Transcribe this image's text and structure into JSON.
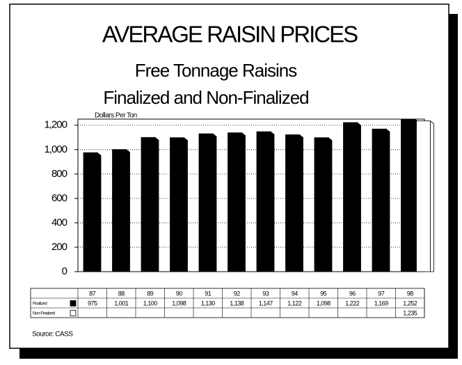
{
  "chart_data": {
    "type": "bar",
    "title": "AVERAGE RAISIN PRICES",
    "subtitle": [
      "Free Tonnage Raisins",
      "Finalized and Non-Finalized"
    ],
    "y_axis_label": "Dollars Per Ton",
    "source": "Source: CASS",
    "categories": [
      "87",
      "88",
      "89",
      "90",
      "91",
      "92",
      "93",
      "94",
      "95",
      "96",
      "97",
      "98"
    ],
    "series": [
      {
        "name": "Finalized",
        "color": "#000000",
        "values": [
          975,
          1001,
          1100,
          1098,
          1130,
          1138,
          1147,
          1122,
          1098,
          1222,
          1169,
          1252
        ],
        "value_labels": [
          "975",
          "1,001",
          "1,100",
          "1,098",
          "1,130",
          "1,138",
          "1,147",
          "1,122",
          "1,098",
          "1,222",
          "1,169",
          "1,252"
        ]
      },
      {
        "name": "Non-Finalized",
        "color": "#ffffff",
        "values": [
          null,
          null,
          null,
          null,
          null,
          null,
          null,
          null,
          null,
          null,
          null,
          1235
        ],
        "value_labels": [
          null,
          null,
          null,
          null,
          null,
          null,
          null,
          null,
          null,
          null,
          null,
          "1,235"
        ]
      }
    ],
    "ylim": [
      0,
      1250
    ],
    "yticks": [
      0,
      200,
      400,
      600,
      800,
      {
        "value": 1000,
        "label": "1,000"
      },
      {
        "value": 1200,
        "label": "1,200"
      }
    ],
    "grid": true
  }
}
